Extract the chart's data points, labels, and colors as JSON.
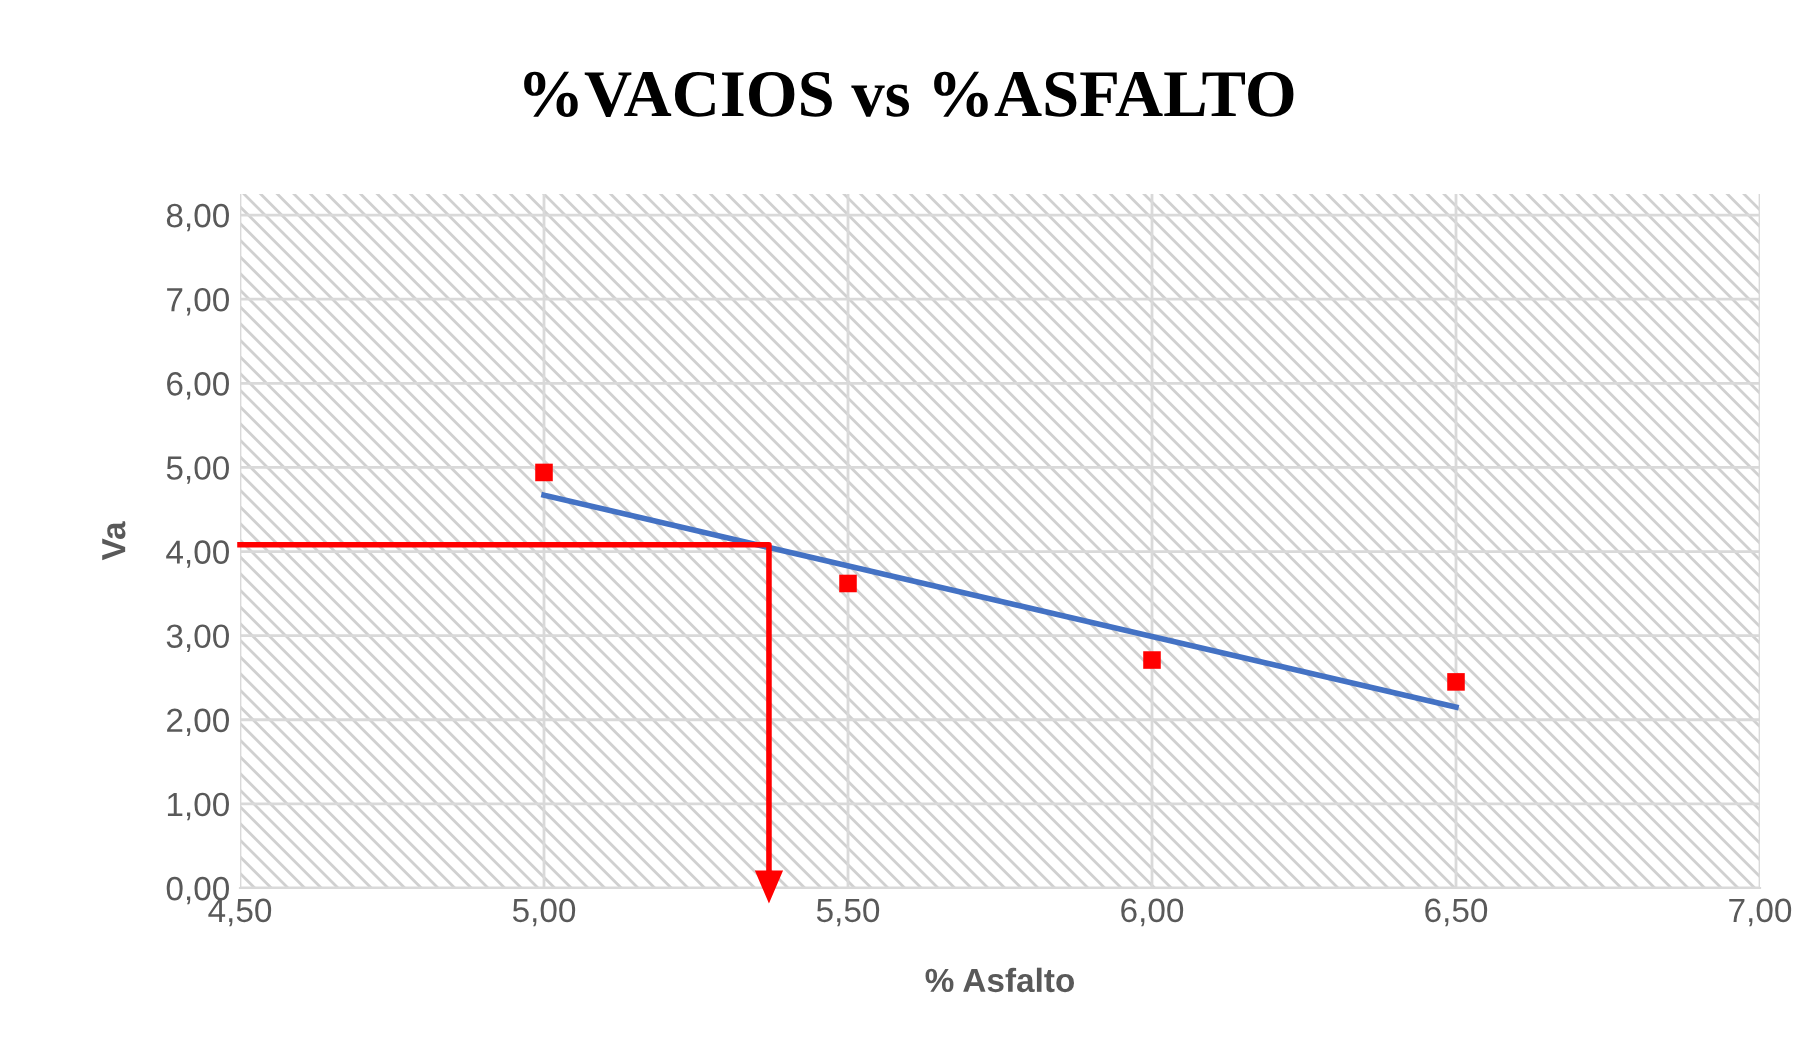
{
  "chart_data": {
    "type": "scatter",
    "title": "%VACIOS vs %ASFALTO",
    "xlabel": "% Asfalto",
    "ylabel": "Va",
    "series": [
      {
        "color": "#ff0000",
        "marker": "square",
        "x": [
          5.0,
          5.5,
          6.0,
          6.5
        ],
        "values": [
          4.94,
          3.62,
          2.71,
          2.45
        ]
      },
      {
        "type": "line",
        "color": "#4472c4",
        "x": [
          5.0,
          6.5
        ],
        "values": [
          4.67,
          2.15
        ]
      },
      {
        "type": "line",
        "color": "#ff0000",
        "x": [
          4.5,
          5.37,
          5.37
        ],
        "values": [
          4.08,
          4.08,
          0
        ]
      }
    ],
    "xlim": [
      4.5,
      7.0
    ],
    "ylim": [
      0,
      8.25
    ],
    "xticks": [
      {
        "value": 4.5,
        "label": "4,50"
      },
      {
        "value": 5.0,
        "label": "5,00"
      },
      {
        "value": 5.5,
        "label": "5,50"
      },
      {
        "value": 6.0,
        "label": "6,00"
      },
      {
        "value": 6.5,
        "label": "6,50"
      },
      {
        "value": 7.0,
        "label": "7,00"
      }
    ],
    "yticks": [
      {
        "value": 0,
        "label": "0,00"
      },
      {
        "value": 1,
        "label": "1,00"
      },
      {
        "value": 2,
        "label": "2,00"
      },
      {
        "value": 3,
        "label": "3,00"
      },
      {
        "value": 4,
        "label": "4,00"
      },
      {
        "value": 5,
        "label": "5,00"
      },
      {
        "value": 6,
        "label": "6,00"
      },
      {
        "value": 7,
        "label": "7,00"
      },
      {
        "value": 8,
        "label": "8,00"
      }
    ],
    "grid": true
  }
}
